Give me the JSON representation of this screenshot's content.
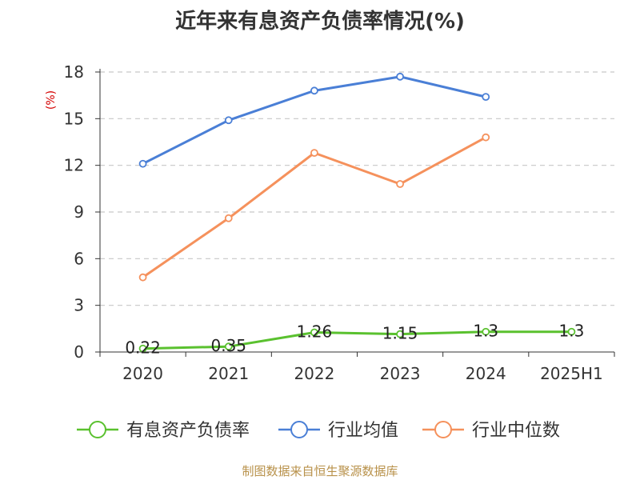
{
  "chart_data": {
    "type": "line",
    "title": "近年来有息资产负债率情况(%)",
    "ylabel": "(%)",
    "xlabel": "",
    "ylim": [
      0,
      18
    ],
    "yticks": [
      "0",
      "3",
      "6",
      "9",
      "12",
      "15",
      "18"
    ],
    "categories": [
      "2020",
      "2021",
      "2022",
      "2023",
      "2024",
      "2025H1"
    ],
    "grid": true,
    "legend_position": "bottom",
    "series": [
      {
        "name": "有息资产负债率",
        "color": "#5ac12f",
        "values": [
          0.22,
          0.35,
          1.26,
          1.15,
          1.3,
          1.3
        ],
        "labels": [
          "0.22",
          "0.35",
          "1.26",
          "1.15",
          "1.3",
          "1.3"
        ]
      },
      {
        "name": "行业均值",
        "color": "#4a7fd6",
        "values": [
          12.1,
          14.9,
          16.8,
          17.7,
          16.4,
          null
        ]
      },
      {
        "name": "行业中位数",
        "color": "#f5915c",
        "values": [
          4.8,
          8.6,
          12.8,
          10.8,
          13.8,
          null
        ]
      }
    ]
  },
  "ylabel_color": "#d40000",
  "source": "制图数据来自恒生聚源数据库"
}
